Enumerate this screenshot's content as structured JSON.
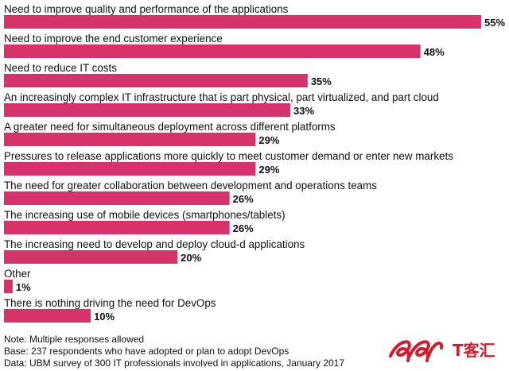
{
  "chart_data": {
    "type": "bar",
    "orientation": "horizontal",
    "categories": [
      "Need to improve quality and performance of the applications",
      "Need to improve the end customer experience",
      "Need to reduce IT costs",
      "An increasingly complex IT infrastructure that is part physical, part virtualized, and part cloud",
      "A greater need for simultaneous deployment across different platforms",
      "Pressures to release applications more quickly to meet customer demand or enter new markets",
      "The need for greater collaboration between development and operations teams",
      "The increasing use of mobile devices (smartphones/tablets)",
      "The increasing need to develop and deploy cloud-d applications",
      "Other",
      "There is nothing driving the need for DevOps"
    ],
    "values": [
      55,
      48,
      35,
      33,
      29,
      29,
      26,
      26,
      20,
      1,
      10
    ],
    "value_labels": [
      "55%",
      "48%",
      "35%",
      "33%",
      "29%",
      "29%",
      "26%",
      "26%",
      "20%",
      "1%",
      "10%"
    ],
    "unit": "%",
    "xlim": [
      0,
      55
    ],
    "grid": false,
    "legend": "none"
  },
  "colors": {
    "bar": "#d6336c",
    "text": "#111111",
    "logo": "#cc1f2f"
  },
  "notes": [
    "Note: Multiple responses allowed",
    "Base: 237 respondents who have adopted or plan to adopt DevOps",
    "Data: UBM survey of 300 IT professionals involved in applications, January 2017"
  ],
  "logo": {
    "icon": "ee-swirl-logo-icon",
    "text": "T客汇"
  }
}
